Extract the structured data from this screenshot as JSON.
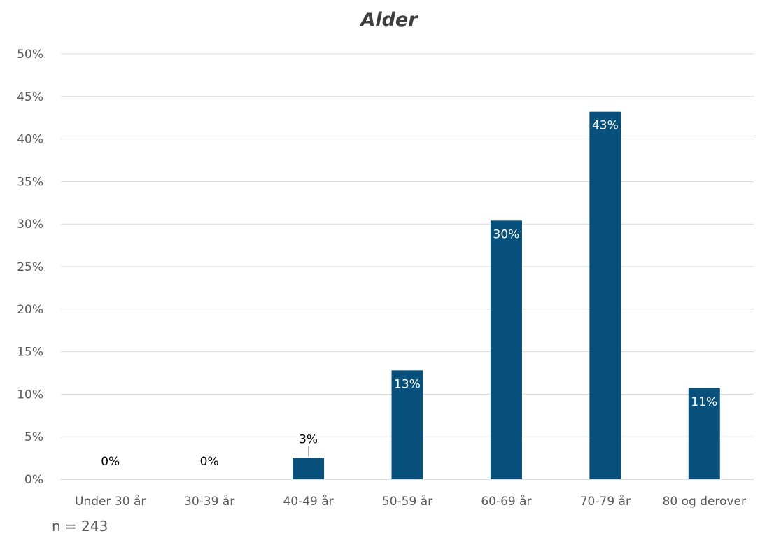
{
  "chart_data": {
    "type": "bar",
    "title": "Alder",
    "categories": [
      "Under 30 år",
      "30-39 år",
      "40-49 år",
      "50-59 år",
      "60-69 år",
      "70-79 år",
      "80 og derover"
    ],
    "values": [
      0.0,
      0.0,
      2.5,
      12.8,
      30.4,
      43.2,
      10.7
    ],
    "data_labels": [
      "0%",
      "0%",
      "3%",
      "13%",
      "30%",
      "43%",
      "11%"
    ],
    "ylim": [
      0,
      50
    ],
    "yticks": [
      0,
      5,
      10,
      15,
      20,
      25,
      30,
      35,
      40,
      45,
      50
    ],
    "ytick_labels": [
      "0%",
      "5%",
      "10%",
      "15%",
      "20%",
      "25%",
      "30%",
      "35%",
      "40%",
      "45%",
      "50%"
    ],
    "grid": true,
    "bar_color": "#08517c"
  },
  "footnote": "n = 243"
}
